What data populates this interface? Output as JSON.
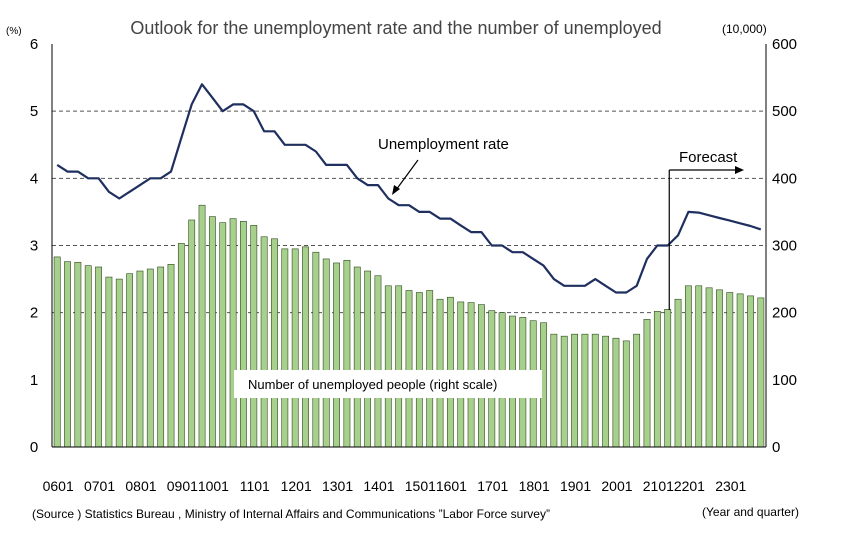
{
  "chart_data": {
    "type": "bar+line",
    "title": "Outlook for the unemployment rate and the number of unemployed",
    "left_axis_unit": "(%)",
    "right_axis_unit": "(10,000)",
    "left_ylim": [
      0,
      6
    ],
    "left_ticks": [
      "0",
      "1",
      "2",
      "3",
      "4",
      "5",
      "6"
    ],
    "right_ylim": [
      0,
      600
    ],
    "right_ticks": [
      "0",
      "100",
      "200",
      "300",
      "400",
      "500",
      "600"
    ],
    "x_tick_labels": [
      "0601",
      "0701",
      "0801",
      "0901",
      "1001",
      "1101",
      "1201",
      "1301",
      "1401",
      "1501",
      "1601",
      "1701",
      "1801",
      "1901",
      "2001",
      "2101",
      "2201",
      "2301"
    ],
    "xlabel": "(Year and quarter)",
    "grid": "dashed horizontal at 2, 3, 4, 5 (%)",
    "series": [
      {
        "name": "Number of unemployed people (right scale)",
        "kind": "bar",
        "axis": "right",
        "color": "#a8d08d",
        "values": [
          283,
          276,
          275,
          270,
          268,
          253,
          250,
          258,
          262,
          265,
          268,
          272,
          303,
          338,
          360,
          343,
          334,
          340,
          336,
          330,
          313,
          310,
          295,
          295,
          298,
          290,
          280,
          274,
          278,
          268,
          262,
          255,
          240,
          240,
          233,
          230,
          233,
          220,
          223,
          216,
          215,
          212,
          203,
          200,
          195,
          193,
          188,
          185,
          168,
          165,
          168,
          168,
          168,
          165,
          162,
          158,
          168,
          190,
          202,
          205,
          220,
          240,
          240,
          237,
          234,
          230,
          228,
          225,
          222
        ]
      },
      {
        "name": "Unemployment rate",
        "kind": "line",
        "axis": "left",
        "color": "#1f2f5f",
        "values": [
          4.2,
          4.1,
          4.1,
          4.0,
          4.0,
          3.8,
          3.7,
          3.8,
          3.9,
          4.0,
          4.0,
          4.1,
          4.6,
          5.1,
          5.4,
          5.2,
          5.0,
          5.1,
          5.1,
          5.0,
          4.7,
          4.7,
          4.5,
          4.5,
          4.5,
          4.4,
          4.2,
          4.2,
          4.2,
          4.0,
          3.9,
          3.9,
          3.7,
          3.6,
          3.6,
          3.5,
          3.5,
          3.4,
          3.4,
          3.3,
          3.2,
          3.2,
          3.0,
          3.0,
          2.9,
          2.9,
          2.8,
          2.7,
          2.5,
          2.4,
          2.4,
          2.4,
          2.5,
          2.4,
          2.3,
          2.3,
          2.4,
          2.8,
          3.0,
          3.0,
          3.15,
          3.5,
          3.49,
          3.45,
          3.41,
          3.37,
          3.33,
          3.29,
          3.24
        ]
      }
    ],
    "annotations": {
      "rate_label": "Unemployment rate",
      "forecast_label": "Forecast",
      "forecast_start_index": 60,
      "bar_label": "Number of unemployed people (right scale)"
    }
  },
  "footer": {
    "source": "(Source ) Statistics Bureau , Ministry of Internal Affairs and Communications ”Labor Force survey”"
  }
}
